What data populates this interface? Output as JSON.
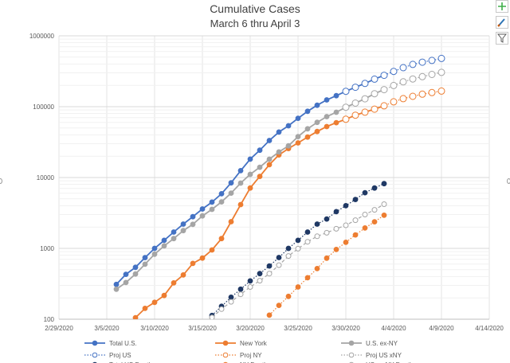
{
  "chart_data": {
    "type": "line",
    "title": "Cumulative Cases",
    "subtitle": "March 6 thru April 3",
    "y_scale": "log",
    "ylim": [
      100,
      1000000
    ],
    "y_ticks": [
      100,
      1000,
      10000,
      100000,
      1000000
    ],
    "y_tick_labels": [
      "100",
      "1000",
      "10000",
      "100000",
      "1000000"
    ],
    "xlim": [
      0,
      45
    ],
    "x_ticks": [
      0,
      5,
      10,
      15,
      20,
      25,
      30,
      35,
      40,
      45
    ],
    "x_tick_labels": [
      "2/29/2020",
      "3/5/2020",
      "3/10/2020",
      "3/15/2020",
      "3/20/2020",
      "3/25/2020",
      "3/30/2020",
      "4/4/2020",
      "4/9/2020",
      "4/14/2020"
    ],
    "grid": true,
    "legend_position": "bottom",
    "series": [
      {
        "name": "Total U.S.",
        "color": "#4472c4",
        "style": "solid-filled",
        "x": [
          6,
          7,
          8,
          9,
          10,
          11,
          12,
          13,
          14,
          15,
          16,
          17,
          18,
          19,
          20,
          21,
          22,
          23,
          24,
          25,
          26,
          27,
          28,
          29,
          30,
          31,
          32,
          33,
          34
        ],
        "values": [
          310,
          430,
          540,
          740,
          1000,
          1300,
          1700,
          2200,
          2800,
          3600,
          4500,
          5900,
          8400,
          12500,
          18200,
          24300,
          33300,
          43800,
          53700,
          68600,
          86000,
          104700,
          124700,
          143000,
          164700,
          188000,
          213000,
          245000,
          277000
        ]
      },
      {
        "name": "New York",
        "color": "#ed7d31",
        "style": "solid-filled",
        "x": [
          8,
          9,
          10,
          11,
          12,
          13,
          14,
          15,
          16,
          17,
          18,
          19,
          20,
          21,
          22,
          23,
          24,
          25,
          26,
          27,
          28,
          29,
          30,
          31,
          32,
          33,
          34
        ],
        "values": [
          105,
          142,
          173,
          216,
          325,
          421,
          613,
          729,
          950,
          1374,
          2382,
          4152,
          7102,
          10356,
          15168,
          20875,
          25665,
          30811,
          37258,
          44635,
          52318,
          59513,
          66497,
          75795,
          83712,
          92381,
          102863
        ]
      },
      {
        "name": "U.S. ex-NY",
        "color": "#a5a5a5",
        "style": "solid-filled",
        "x": [
          6,
          7,
          8,
          9,
          10,
          11,
          12,
          13,
          14,
          15,
          16,
          17,
          18,
          19,
          20,
          21,
          22,
          23,
          24,
          25,
          26,
          27,
          28,
          29,
          30,
          31,
          32,
          33,
          34
        ],
        "values": [
          265,
          330,
          435,
          598,
          827,
          1084,
          1375,
          1779,
          2187,
          2871,
          3550,
          4526,
          6018,
          8348,
          11098,
          13944,
          18132,
          22925,
          28035,
          37789,
          48682,
          60065,
          72382,
          83487,
          98203,
          112205,
          129288,
          152619,
          174137
        ]
      },
      {
        "name": "Proj US",
        "color": "#4472c4",
        "style": "dotted-open",
        "x": [
          30,
          31,
          32,
          33,
          34,
          35,
          36,
          37,
          38,
          39,
          40
        ],
        "values": [
          164700,
          188000,
          213000,
          245000,
          277000,
          315000,
          355000,
          395000,
          425000,
          450000,
          480000
        ]
      },
      {
        "name": "Proj NY",
        "color": "#ed7d31",
        "style": "dotted-open",
        "x": [
          30,
          31,
          32,
          33,
          34,
          35,
          36,
          37,
          38,
          39,
          40
        ],
        "values": [
          66497,
          75795,
          83712,
          92381,
          102863,
          117000,
          130000,
          140000,
          150000,
          158000,
          166000
        ]
      },
      {
        "name": "Proj US xNY",
        "color": "#a5a5a5",
        "style": "dotted-open",
        "x": [
          30,
          31,
          32,
          33,
          34,
          35,
          36,
          37,
          38,
          39,
          40
        ],
        "values": [
          98203,
          112205,
          129288,
          152619,
          174137,
          199000,
          224000,
          246000,
          265000,
          285000,
          305000
        ]
      },
      {
        "name": "Total US Deaths",
        "color": "#1f3864",
        "style": "dotted-filled",
        "x": [
          16,
          17,
          18,
          19,
          20,
          21,
          22,
          23,
          24,
          25,
          26,
          27,
          28,
          29,
          30,
          31,
          32,
          33,
          34
        ],
        "values": [
          113,
          152,
          204,
          265,
          347,
          440,
          564,
          742,
          1000,
          1300,
          1700,
          2200,
          2600,
          3300,
          4000,
          4900,
          6100,
          7100,
          8200
        ]
      },
      {
        "name": "NY Deaths",
        "color": "#ed7d31",
        "style": "dotted-filled",
        "x": [
          22,
          23,
          24,
          25,
          26,
          27,
          28,
          29,
          30,
          31,
          32,
          33,
          34
        ],
        "values": [
          114,
          157,
          210,
          285,
          385,
          519,
          728,
          965,
          1218,
          1550,
          1941,
          2373,
          2935
        ]
      },
      {
        "name": "US ex-NY Deaths",
        "color": "#a5a5a5",
        "style": "dashed-open",
        "x": [
          16,
          17,
          18,
          19,
          20,
          21,
          22,
          23,
          24,
          25,
          26,
          27,
          28,
          29,
          30,
          31,
          32,
          33,
          34
        ],
        "values": [
          106,
          139,
          176,
          225,
          285,
          350,
          440,
          580,
          780,
          990,
          1240,
          1480,
          1660,
          1890,
          2120,
          2500,
          3000,
          3500,
          4200
        ]
      }
    ]
  }
}
